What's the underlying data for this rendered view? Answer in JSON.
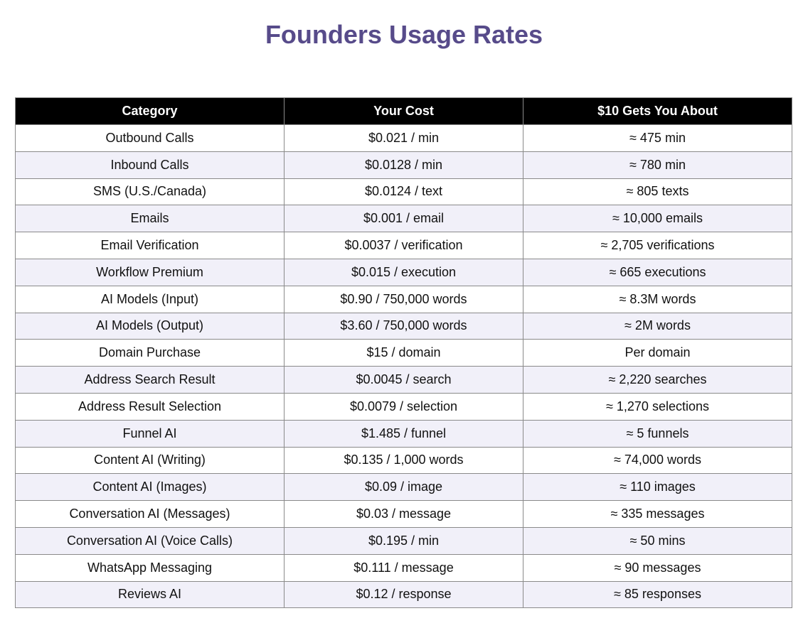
{
  "title": "Founders Usage Rates",
  "colors": {
    "title": "#574b8a",
    "header_bg": "#000000",
    "header_text": "#ffffff",
    "row_alt_bg": "#f1f0f9",
    "border": "#8a8a8a"
  },
  "table": {
    "headers": [
      "Category",
      "Your Cost",
      "$10 Gets You About"
    ],
    "rows": [
      [
        "Outbound Calls",
        "$0.021 / min",
        "≈ 475 min"
      ],
      [
        "Inbound Calls",
        "$0.0128 / min",
        "≈ 780 min"
      ],
      [
        "SMS (U.S./Canada)",
        "$0.0124 / text",
        "≈ 805 texts"
      ],
      [
        "Emails",
        "$0.001 / email",
        "≈ 10,000 emails"
      ],
      [
        "Email Verification",
        "$0.0037 / verification",
        "≈ 2,705 verifications"
      ],
      [
        "Workflow Premium",
        "$0.015 / execution",
        "≈ 665 executions"
      ],
      [
        "AI Models (Input)",
        "$0.90 / 750,000 words",
        "≈ 8.3M words"
      ],
      [
        "AI Models (Output)",
        "$3.60 / 750,000 words",
        "≈ 2M words"
      ],
      [
        "Domain Purchase",
        "$15 / domain",
        "Per domain"
      ],
      [
        "Address Search Result",
        "$0.0045 / search",
        "≈ 2,220 searches"
      ],
      [
        "Address Result Selection",
        "$0.0079 / selection",
        "≈ 1,270 selections"
      ],
      [
        "Funnel AI",
        "$1.485 / funnel",
        "≈ 5 funnels"
      ],
      [
        "Content AI (Writing)",
        "$0.135 / 1,000 words",
        "≈ 74,000 words"
      ],
      [
        "Content AI (Images)",
        "$0.09 / image",
        "≈ 110 images"
      ],
      [
        "Conversation AI (Messages)",
        "$0.03 / message",
        "≈ 335 messages"
      ],
      [
        "Conversation AI (Voice Calls)",
        "$0.195 / min",
        "≈ 50 mins"
      ],
      [
        "WhatsApp Messaging",
        "$0.111 / message",
        "≈ 90 messages"
      ],
      [
        "Reviews AI",
        "$0.12 / response",
        "≈ 85 responses"
      ]
    ]
  }
}
